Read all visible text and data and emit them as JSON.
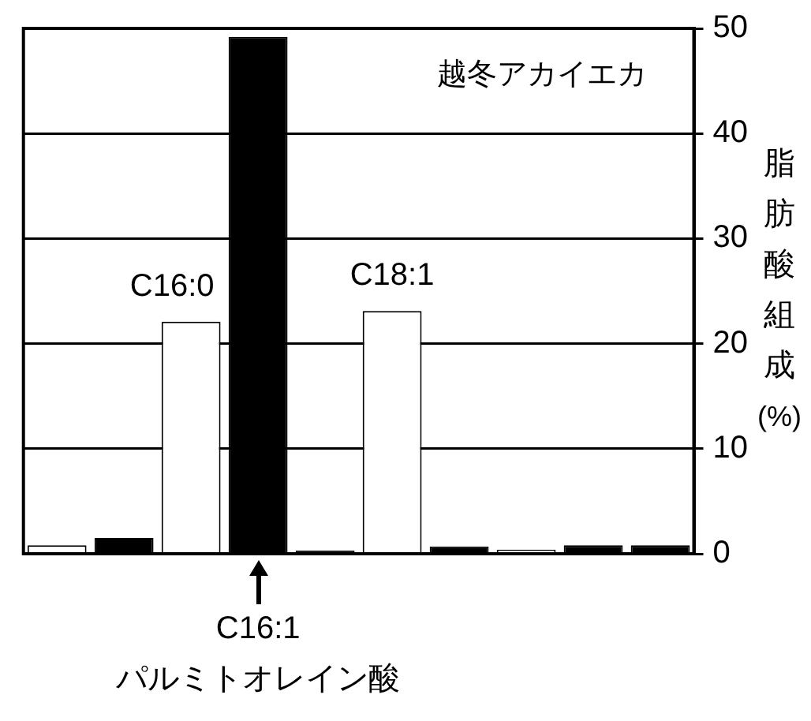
{
  "chart_data": {
    "type": "bar",
    "title": "越冬アカイエカ",
    "ylabel": "脂肪酸組成 (%)",
    "categories": [
      null,
      null,
      null,
      "C16:1",
      null,
      null,
      null,
      null,
      null,
      null
    ],
    "values": [
      0.8,
      1.5,
      22.1,
      49.2,
      0.3,
      23.1,
      0.7,
      0.4,
      0.8,
      0.8
    ],
    "colors": [
      "#ffffff",
      "#000000",
      "#ffffff",
      "#000000",
      "#000000",
      "#ffffff",
      "#000000",
      "#ffffff",
      "#000000",
      "#000000"
    ],
    "ylim": [
      0,
      50
    ],
    "yticks": [
      0,
      10,
      20,
      30,
      40,
      50
    ],
    "grid": "y",
    "legend": false,
    "annotations": [
      {
        "text": "C16:0",
        "y": 22.1
      },
      {
        "text": "C18:1",
        "y": 23.1
      },
      "パルミトオレイン酸"
    ]
  }
}
